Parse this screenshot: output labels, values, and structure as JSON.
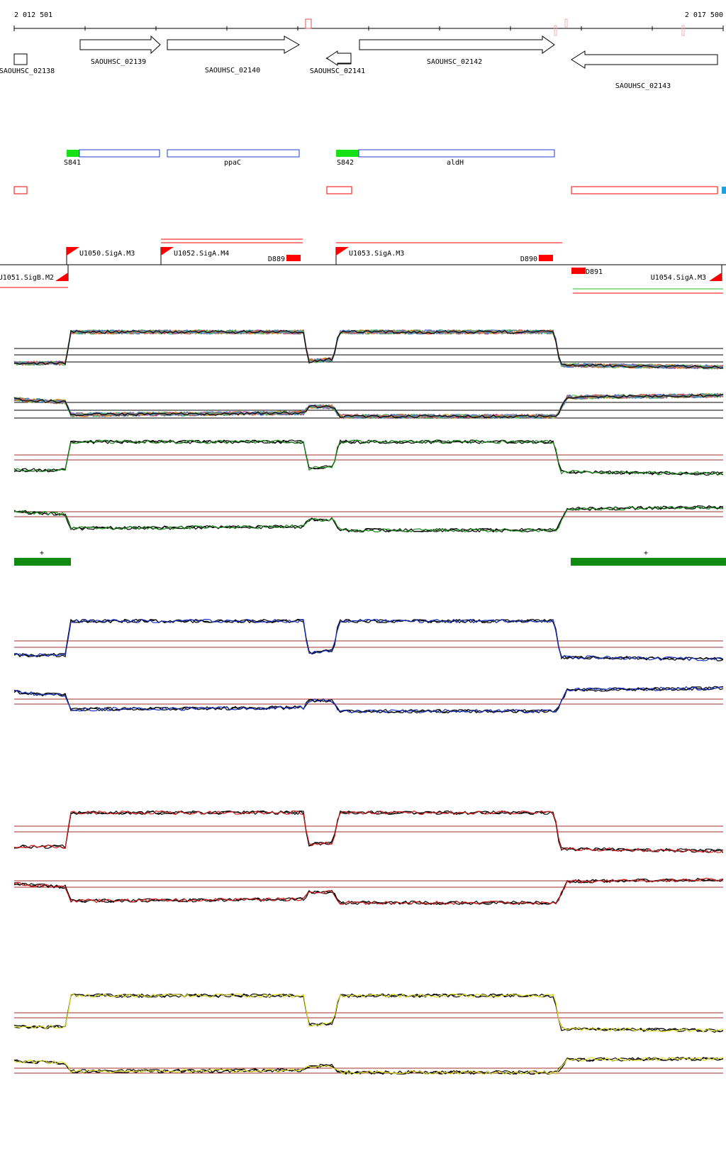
{
  "coordinates": {
    "start_label": "2 012 501",
    "end_label": "2 017 500"
  },
  "genes": [
    {
      "label": "SAOUHSC_02138",
      "strand": "none"
    },
    {
      "label": "SAOUHSC_02139",
      "strand": "+"
    },
    {
      "label": "SAOUHSC_02140",
      "strand": "+"
    },
    {
      "label": "SAOUHSC_02141",
      "strand": "-"
    },
    {
      "label": "SAOUHSC_02142",
      "strand": "+"
    },
    {
      "label": "SAOUHSC_02143",
      "strand": "-"
    }
  ],
  "features": [
    {
      "label": "S841"
    },
    {
      "label": "ppaC"
    },
    {
      "label": "S842"
    },
    {
      "label": "aldH"
    }
  ],
  "promoters": [
    {
      "label": "U1050.SigA.M3"
    },
    {
      "label": "U1052.SigA.M4"
    },
    {
      "label": "U1053.SigA.M3"
    },
    {
      "label": "U1051.SigB.M2"
    },
    {
      "label": "U1054.SigA.M3"
    }
  ],
  "terminators": [
    {
      "label": "D889"
    },
    {
      "label": "D890"
    },
    {
      "label": "D891"
    }
  ],
  "segments": [
    {
      "label": "+"
    },
    {
      "label": "+"
    }
  ],
  "colors": {
    "gene_outline": "#000000",
    "feature_blue": "#1f3fd1",
    "feature_green": "#16e016",
    "utr_red": "#ff0000",
    "segment_green": "#118a11",
    "ref_line_brown": "#a0302b",
    "profile_green": "#1a8f1a",
    "profile_blue": "#1733c9",
    "profile_red": "#d81e1e",
    "profile_yellow": "#e0e020"
  }
}
